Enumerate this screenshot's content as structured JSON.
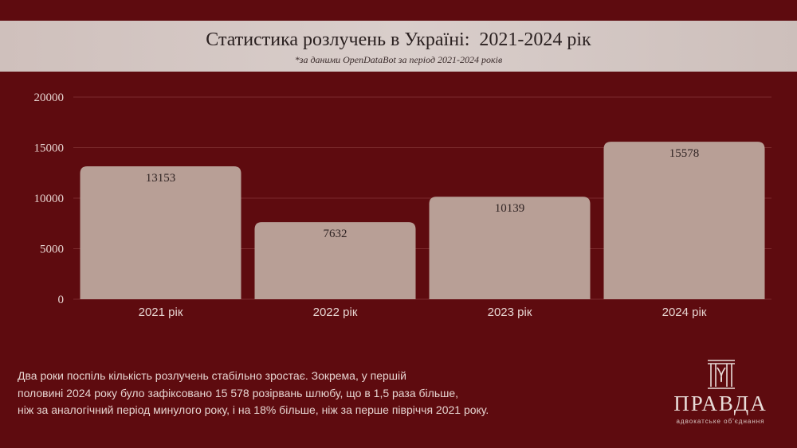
{
  "header": {
    "title": "Статистика розлучень в Україні:  2021-2024 рік",
    "subtitle": "*за даними OpenDataBot за період 2021-2024 років"
  },
  "chart_data": {
    "type": "bar",
    "categories": [
      "2021 рік",
      "2022 рік",
      "2023 рік",
      "2024 рік"
    ],
    "values": [
      13153,
      7632,
      10139,
      15578
    ],
    "ylim": [
      0,
      20000
    ],
    "yticks": [
      0,
      5000,
      10000,
      15000,
      20000
    ],
    "data_labels": true,
    "grid": true,
    "colors": {
      "bar": "#b89f96",
      "grid": "#7a2a2c",
      "tick_text": "#e6d4d0",
      "label_text": "#2f2323"
    }
  },
  "caption": {
    "lines": [
      "Два роки поспіль кількість розлучень стабільно зростає. Зокрема, у першій",
      "половині 2024 року було зафіксовано 15 578 розірвань шлюбу, що в 1,5 раза більше,",
      "ніж за аналогічний період минулого року, і на 18% більше, ніж за перше півріччя 2021 року."
    ]
  },
  "logo": {
    "icon": "columns-emblem-icon",
    "word": "ПРАВДА",
    "sub": "адвокатське об'єднання"
  }
}
